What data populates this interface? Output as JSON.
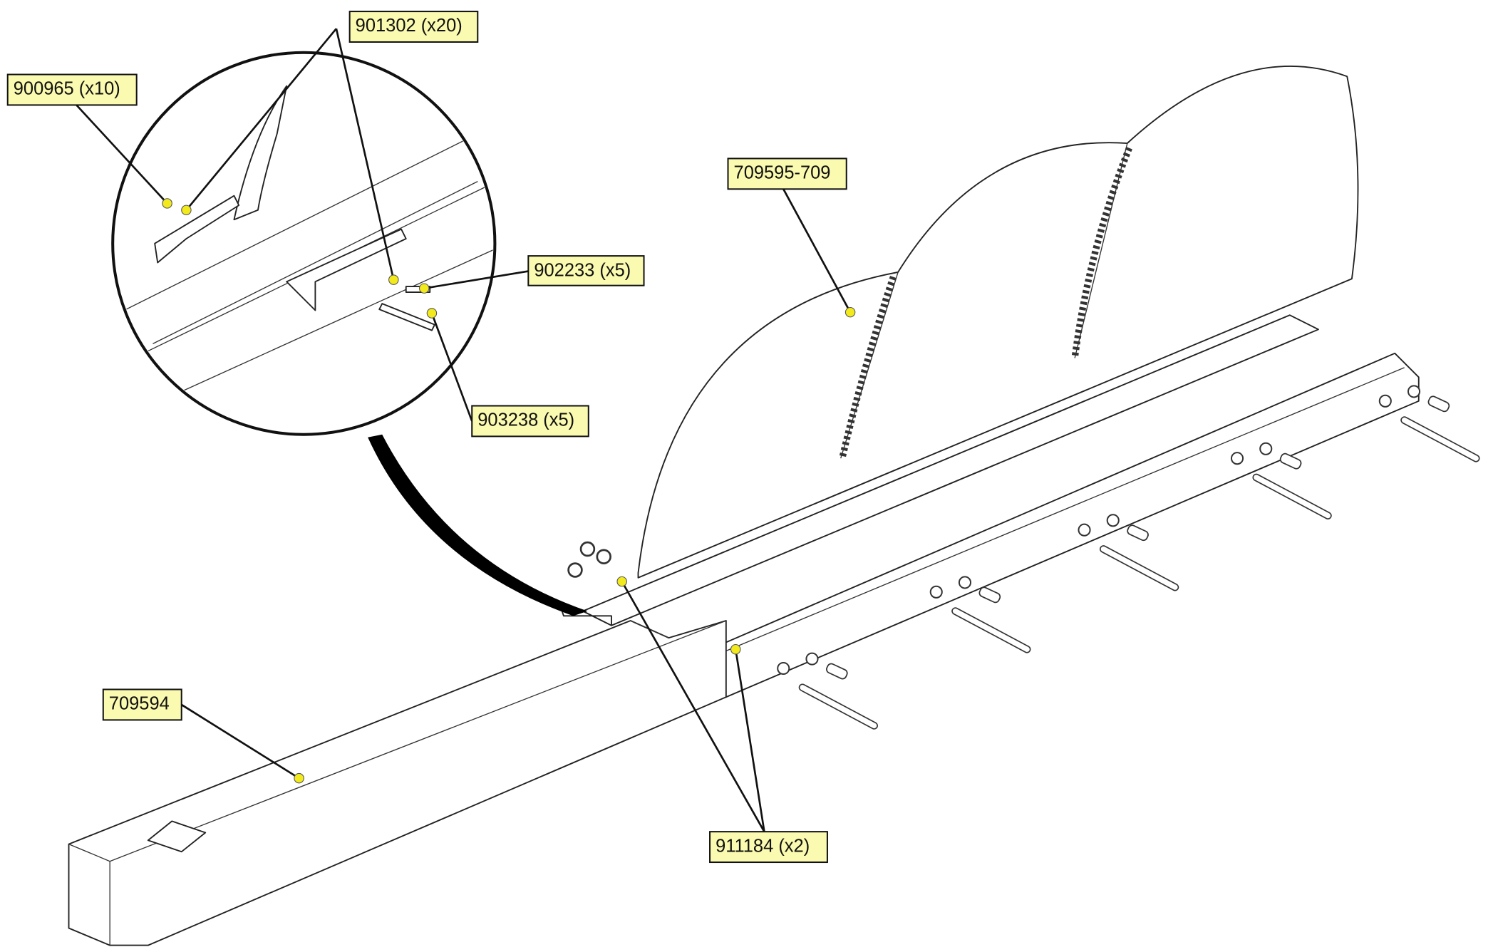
{
  "callouts": [
    {
      "label": "900965 (x10)"
    },
    {
      "label": "901302 (x20)"
    },
    {
      "label": "709595-709"
    },
    {
      "label": "902233 (x5)"
    },
    {
      "label": "903238 (x5)"
    },
    {
      "label": "709594"
    },
    {
      "label": "911184 (x2)"
    }
  ]
}
